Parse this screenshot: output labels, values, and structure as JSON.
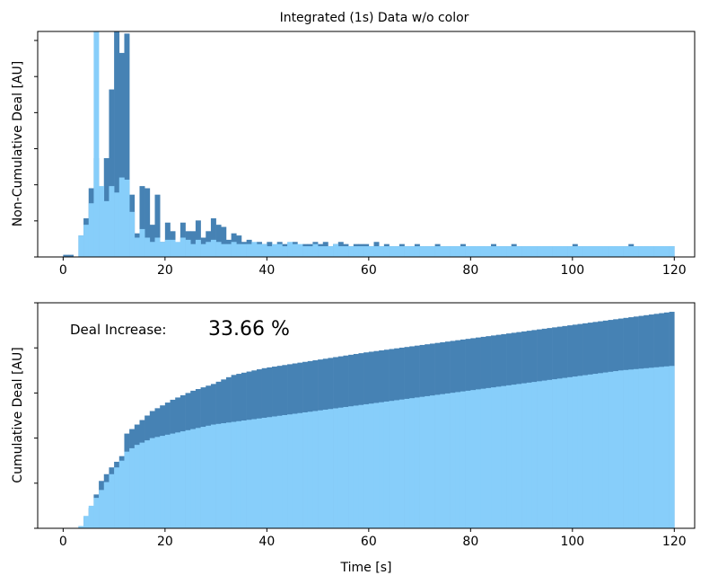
{
  "figure": {
    "colors": {
      "dark": "#4682b4",
      "light": "#87cefa",
      "frame": "#000000"
    }
  },
  "chart_data": [
    {
      "type": "bar",
      "id": "top",
      "title": "Integrated (1s) Data w/o color",
      "xlabel": "",
      "ylabel": "Non-Cumulative Deal [AU]",
      "xlim": [
        -5,
        124
      ],
      "ylim": [
        0,
        1.05
      ],
      "xticks": [
        0,
        20,
        40,
        60,
        80,
        100,
        120
      ],
      "y_tick_labels_shown": false,
      "grid": false,
      "bin_width": 1,
      "x": [
        1,
        2,
        3,
        4,
        5,
        6,
        7,
        8,
        9,
        10,
        11,
        12,
        13,
        14,
        15,
        16,
        17,
        18,
        19,
        20,
        21,
        22,
        23,
        24,
        25,
        26,
        27,
        28,
        29,
        30,
        31,
        32,
        33,
        34,
        35,
        36,
        37,
        38,
        39,
        40,
        41,
        42,
        43,
        44,
        45,
        46,
        47,
        48,
        49,
        50,
        51,
        52,
        53,
        54,
        55,
        56,
        57,
        58,
        59,
        60,
        61,
        62,
        63,
        64,
        65,
        66,
        67,
        68,
        69,
        70,
        71,
        72,
        73,
        74,
        75,
        76,
        77,
        78,
        79,
        80,
        81,
        82,
        83,
        84,
        85,
        86,
        87,
        88,
        89,
        90,
        91,
        92,
        93,
        94,
        95,
        96,
        97,
        98,
        99,
        100,
        101,
        102,
        103,
        104,
        105,
        106,
        107,
        108,
        109,
        110,
        111,
        112,
        113,
        114,
        115,
        116,
        117,
        118,
        119,
        120
      ],
      "series": [
        {
          "name": "",
          "color": "#4682b4",
          "values": [
            0.01,
            0.01,
            0,
            0.1,
            0.18,
            0.32,
            0.46,
            0.18,
            0.46,
            0.78,
            1.06,
            0.95,
            1.04,
            0.29,
            0.11,
            0.33,
            0.32,
            0.15,
            0.29,
            0.07,
            0.16,
            0.12,
            0.06,
            0.16,
            0.12,
            0.12,
            0.17,
            0.09,
            0.12,
            0.18,
            0.15,
            0.14,
            0.08,
            0.11,
            0.1,
            0.07,
            0.08,
            0.06,
            0.07,
            0.06,
            0.07,
            0.05,
            0.07,
            0.06,
            0.06,
            0.07,
            0.05,
            0.06,
            0.06,
            0.07,
            0.06,
            0.07,
            0.05,
            0.06,
            0.07,
            0.06,
            0.05,
            0.06,
            0.06,
            0.06,
            0.05,
            0.07,
            0.05,
            0.06,
            0.05,
            0.05,
            0.06,
            0.05,
            0.05,
            0.06,
            0.05,
            0.05,
            0.05,
            0.06,
            0.05,
            0.05,
            0.05,
            0.05,
            0.06,
            0.05,
            0.05,
            0.05,
            0.05,
            0.05,
            0.06,
            0.05,
            0.05,
            0.05,
            0.06,
            0.05,
            0.05,
            0.05,
            0.05,
            0.05,
            0.05,
            0.05,
            0.05,
            0.05,
            0.05,
            0.05,
            0.06,
            0.05,
            0.05,
            0.05,
            0.05,
            0.05,
            0.05,
            0.05,
            0.05,
            0.05,
            0.05,
            0.06,
            0.05,
            0.05,
            0.05,
            0.05,
            0.05,
            0.05,
            0.05,
            0.05
          ]
        },
        {
          "name": "",
          "color": "#87cefa",
          "values": [
            0,
            0,
            0,
            0.1,
            0.15,
            0.25,
            1.05,
            0.33,
            0.26,
            0.33,
            0.3,
            0.37,
            0.36,
            0.21,
            0.09,
            0.13,
            0.09,
            0.07,
            0.09,
            0.07,
            0.08,
            0.08,
            0.07,
            0.09,
            0.08,
            0.06,
            0.08,
            0.06,
            0.07,
            0.08,
            0.07,
            0.06,
            0.06,
            0.07,
            0.06,
            0.06,
            0.06,
            0.07,
            0.06,
            0.06,
            0.05,
            0.06,
            0.06,
            0.05,
            0.07,
            0.06,
            0.06,
            0.05,
            0.05,
            0.06,
            0.05,
            0.05,
            0.05,
            0.06,
            0.05,
            0.05,
            0.05,
            0.05,
            0.05,
            0.05,
            0.05,
            0.05,
            0.05,
            0.05,
            0.05,
            0.05,
            0.05,
            0.05,
            0.05,
            0.05,
            0.05,
            0.05,
            0.05,
            0.05,
            0.05,
            0.05,
            0.05,
            0.05,
            0.05,
            0.05,
            0.05,
            0.05,
            0.05,
            0.05,
            0.05,
            0.05,
            0.05,
            0.05,
            0.05,
            0.05,
            0.05,
            0.05,
            0.05,
            0.05,
            0.05,
            0.05,
            0.05,
            0.05,
            0.05,
            0.05,
            0.05,
            0.05,
            0.05,
            0.05,
            0.05,
            0.05,
            0.05,
            0.05,
            0.05,
            0.05,
            0.05,
            0.05,
            0.05,
            0.05,
            0.05,
            0.05,
            0.05,
            0.05,
            0.05,
            0.05
          ]
        }
      ]
    },
    {
      "type": "bar",
      "id": "bottom",
      "title": "",
      "xlabel": "Time [s]",
      "ylabel": "Cumulative Deal [AU]",
      "xlim": [
        -5,
        124
      ],
      "ylim": [
        0,
        1.0
      ],
      "xticks": [
        0,
        20,
        40,
        60,
        80,
        100,
        120
      ],
      "y_tick_labels_shown": false,
      "grid": false,
      "annotation": {
        "label": "Deal Increase:",
        "value": "33.66 %"
      },
      "series": [
        {
          "name": "",
          "color": "#4682b4",
          "cumulative_of": "dark_top_series",
          "curve_points_x": [
            4,
            6,
            8,
            10,
            12,
            13,
            15,
            18,
            22,
            26,
            30,
            34,
            40,
            50,
            60,
            70,
            80,
            90,
            100,
            110,
            120
          ],
          "curve_points_y": [
            0.01,
            0.09,
            0.21,
            0.27,
            0.32,
            0.42,
            0.46,
            0.52,
            0.57,
            0.61,
            0.64,
            0.68,
            0.71,
            0.745,
            0.78,
            0.81,
            0.84,
            0.87,
            0.9,
            0.93,
            0.96
          ]
        },
        {
          "name": "",
          "color": "#87cefa",
          "cumulative_of": "light_top_series",
          "curve_points_x": [
            4,
            6,
            8,
            10,
            12,
            13,
            15,
            18,
            22,
            26,
            30,
            40,
            50,
            60,
            70,
            80,
            90,
            100,
            110,
            120
          ],
          "curve_points_y": [
            0.01,
            0.1,
            0.17,
            0.24,
            0.3,
            0.34,
            0.37,
            0.4,
            0.42,
            0.44,
            0.46,
            0.49,
            0.52,
            0.55,
            0.58,
            0.61,
            0.64,
            0.67,
            0.7,
            0.72
          ]
        }
      ]
    }
  ]
}
